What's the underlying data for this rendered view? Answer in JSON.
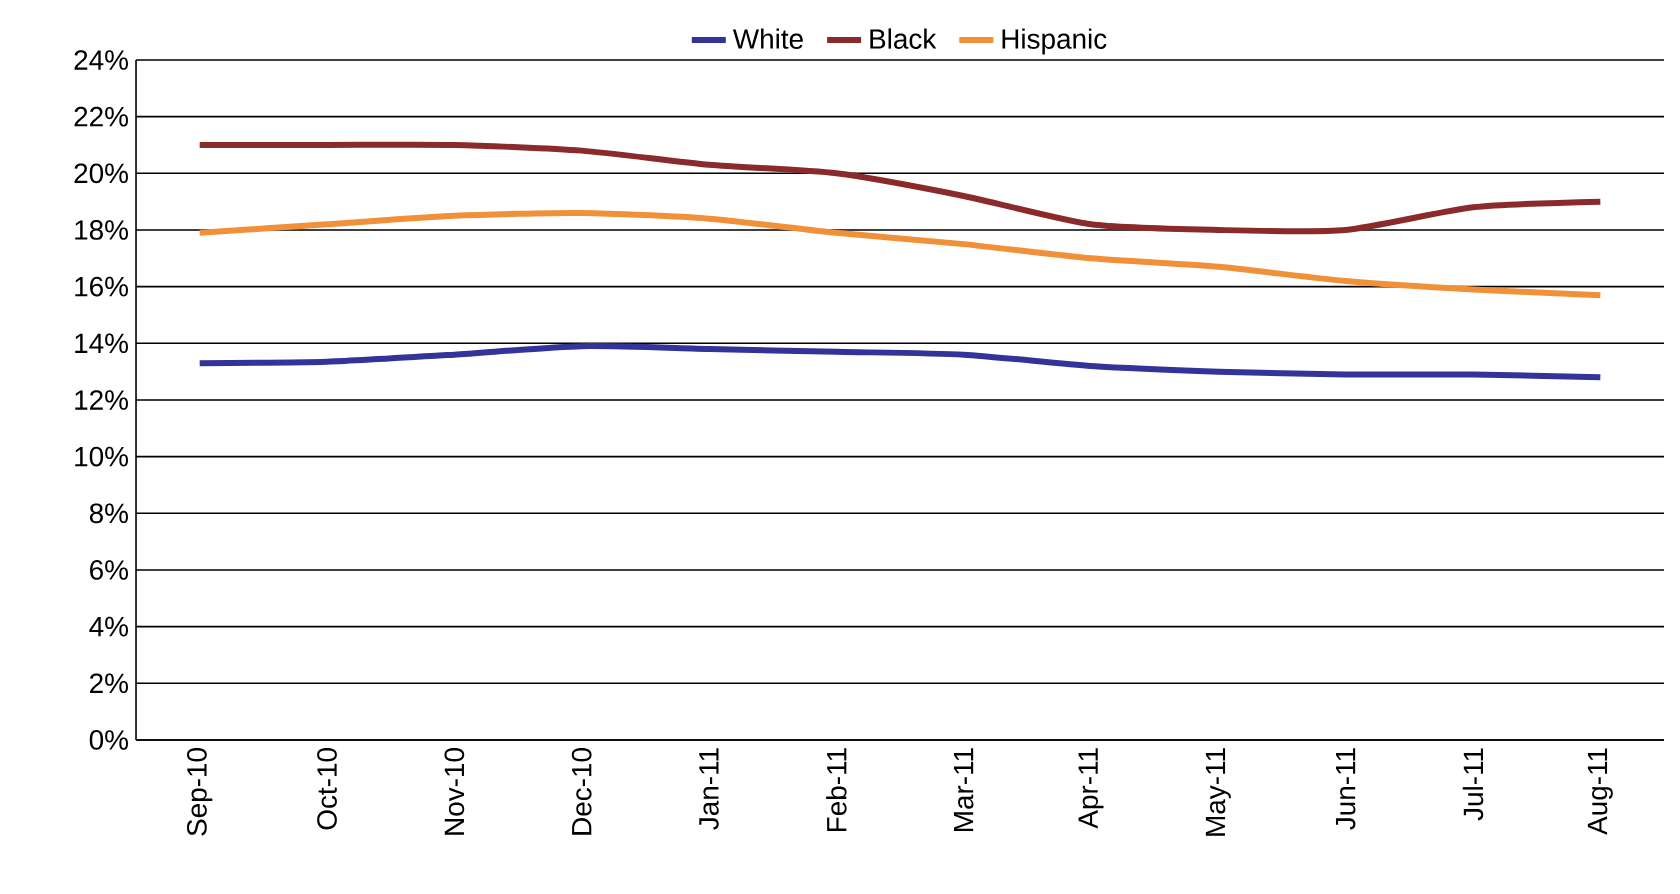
{
  "chart_data": {
    "type": "line",
    "categories": [
      "Sep-10",
      "Oct-10",
      "Nov-10",
      "Dec-10",
      "Jan-11",
      "Feb-11",
      "Mar-11",
      "Apr-11",
      "May-11",
      "Jun-11",
      "Jul-11",
      "Aug-11"
    ],
    "series": [
      {
        "name": "White",
        "color": "#333399",
        "values": [
          13.3,
          13.35,
          13.6,
          13.9,
          13.8,
          13.7,
          13.6,
          13.2,
          13.0,
          12.9,
          12.9,
          12.8
        ]
      },
      {
        "name": "Black",
        "color": "#8b2a2a",
        "values": [
          21.0,
          21.0,
          21.0,
          20.8,
          20.3,
          20.0,
          19.2,
          18.2,
          18.0,
          18.0,
          18.8,
          19.0
        ]
      },
      {
        "name": "Hispanic",
        "color": "#f0913a",
        "values": [
          17.9,
          18.2,
          18.5,
          18.6,
          18.4,
          17.9,
          17.5,
          17.0,
          16.7,
          16.2,
          15.9,
          15.7
        ]
      }
    ],
    "ylim": [
      0,
      24
    ],
    "yticks": [
      {
        "value": 0,
        "label": "0%"
      },
      {
        "value": 2,
        "label": "2%"
      },
      {
        "value": 4,
        "label": "4%"
      },
      {
        "value": 6,
        "label": "6%"
      },
      {
        "value": 8,
        "label": "8%"
      },
      {
        "value": 10,
        "label": "10%"
      },
      {
        "value": 12,
        "label": "12%"
      },
      {
        "value": 14,
        "label": "14%"
      },
      {
        "value": 16,
        "label": "16%"
      },
      {
        "value": 18,
        "label": "18%"
      },
      {
        "value": 20,
        "label": "20%"
      },
      {
        "value": 22,
        "label": "22%"
      },
      {
        "value": 24,
        "label": "24%"
      }
    ],
    "grid": "y",
    "legend": "top",
    "marker": "none",
    "line_style": "solid"
  }
}
